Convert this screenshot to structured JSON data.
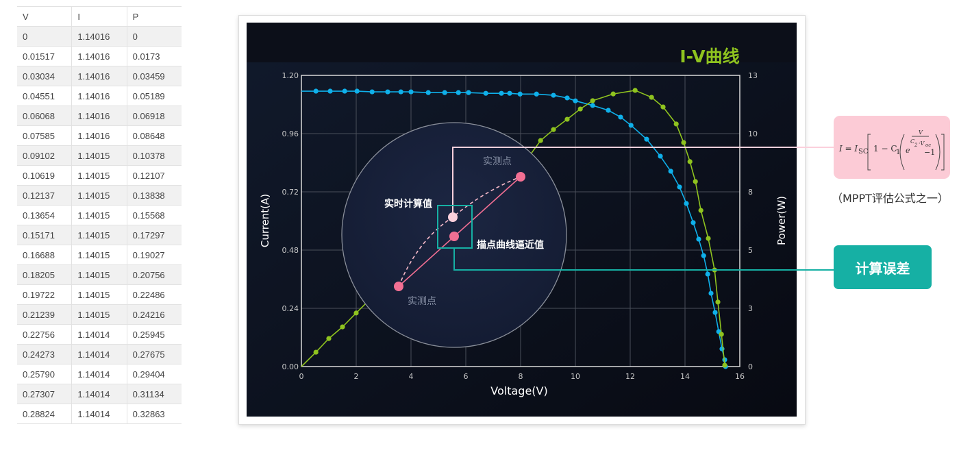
{
  "table": {
    "headers": [
      "V",
      "I",
      "P"
    ],
    "rows": [
      [
        "0",
        "1.14016",
        "0"
      ],
      [
        "0.01517",
        "1.14016",
        "0.0173"
      ],
      [
        "0.03034",
        "1.14016",
        "0.03459"
      ],
      [
        "0.04551",
        "1.14016",
        "0.05189"
      ],
      [
        "0.06068",
        "1.14016",
        "0.06918"
      ],
      [
        "0.07585",
        "1.14016",
        "0.08648"
      ],
      [
        "0.09102",
        "1.14015",
        "0.10378"
      ],
      [
        "0.10619",
        "1.14015",
        "0.12107"
      ],
      [
        "0.12137",
        "1.14015",
        "0.13838"
      ],
      [
        "0.13654",
        "1.14015",
        "0.15568"
      ],
      [
        "0.15171",
        "1.14015",
        "0.17297"
      ],
      [
        "0.16688",
        "1.14015",
        "0.19027"
      ],
      [
        "0.18205",
        "1.14015",
        "0.20756"
      ],
      [
        "0.19722",
        "1.14015",
        "0.22486"
      ],
      [
        "0.21239",
        "1.14015",
        "0.24216"
      ],
      [
        "0.22756",
        "1.14014",
        "0.25945"
      ],
      [
        "0.24273",
        "1.14014",
        "0.27675"
      ],
      [
        "0.25790",
        "1.14014",
        "0.29404"
      ],
      [
        "0.27307",
        "1.14014",
        "0.31134"
      ],
      [
        "0.28824",
        "1.14014",
        "0.32863"
      ]
    ]
  },
  "chart_data": {
    "type": "line",
    "title": "I-V曲线",
    "xlabel": "Voltage(V)",
    "ylabel": "Current(A)",
    "y2label": "Power(W)",
    "xlim": [
      0,
      16
    ],
    "ylim": [
      0,
      1.2
    ],
    "y2lim": [
      0,
      13
    ],
    "xticks": [
      "0",
      "2",
      "4",
      "6",
      "8",
      "10",
      "12",
      "14",
      "16"
    ],
    "yticks": [
      "0.00",
      "0.24",
      "0.48",
      "0.72",
      "0.96",
      "1.20"
    ],
    "y2ticks": [
      "0",
      "3",
      "5",
      "8",
      "10",
      "13"
    ],
    "grid": true,
    "colors": {
      "current": "#0fb0ea",
      "power": "#8fc31f",
      "title": "#8fc31f",
      "measured": "#f26f93",
      "calculated": "#fbd0dc",
      "highlight": "#16b0a4"
    },
    "series": [
      {
        "axis": "left",
        "color": "#0fb0ea",
        "points": [
          [
            0,
            1.135
          ],
          [
            0.53,
            1.135
          ],
          [
            1.05,
            1.135
          ],
          [
            1.58,
            1.135
          ],
          [
            2.03,
            1.135
          ],
          [
            2.58,
            1.132
          ],
          [
            3.15,
            1.132
          ],
          [
            3.63,
            1.132
          ],
          [
            4.0,
            1.132
          ],
          [
            4.63,
            1.129
          ],
          [
            5.23,
            1.129
          ],
          [
            5.73,
            1.129
          ],
          [
            6.1,
            1.129
          ],
          [
            6.73,
            1.126
          ],
          [
            7.3,
            1.126
          ],
          [
            7.6,
            1.126
          ],
          [
            7.98,
            1.123
          ],
          [
            8.58,
            1.123
          ],
          [
            9.2,
            1.118
          ],
          [
            9.7,
            1.107
          ],
          [
            10.0,
            1.095
          ],
          [
            10.63,
            1.076
          ],
          [
            11.2,
            1.056
          ],
          [
            11.65,
            1.028
          ],
          [
            12.03,
            0.994
          ],
          [
            12.6,
            0.937
          ],
          [
            13.1,
            0.867
          ],
          [
            13.48,
            0.805
          ],
          [
            13.8,
            0.74
          ],
          [
            14.05,
            0.672
          ],
          [
            14.3,
            0.593
          ],
          [
            14.5,
            0.525
          ],
          [
            14.68,
            0.457
          ],
          [
            14.83,
            0.381
          ],
          [
            14.95,
            0.302
          ],
          [
            15.1,
            0.223
          ],
          [
            15.23,
            0.144
          ],
          [
            15.35,
            0.073
          ],
          [
            15.45,
            0.028
          ],
          [
            15.48,
            0.0
          ]
        ]
      },
      {
        "axis": "right",
        "color": "#8fc31f",
        "points": [
          [
            0,
            0
          ],
          [
            0.53,
            0.64
          ],
          [
            1.0,
            1.25
          ],
          [
            1.5,
            1.77
          ],
          [
            2.0,
            2.39
          ],
          [
            2.5,
            3.0
          ],
          [
            3.5,
            3.96
          ],
          [
            4.5,
            5.08
          ],
          [
            5.5,
            6.21
          ],
          [
            6.5,
            7.32
          ],
          [
            7.5,
            8.44
          ],
          [
            8.2,
            9.2
          ],
          [
            8.73,
            10.09
          ],
          [
            9.2,
            10.58
          ],
          [
            9.7,
            11.04
          ],
          [
            10.18,
            11.5
          ],
          [
            10.63,
            11.87
          ],
          [
            11.38,
            12.17
          ],
          [
            12.18,
            12.33
          ],
          [
            12.78,
            12.02
          ],
          [
            13.2,
            11.59
          ],
          [
            13.68,
            10.83
          ],
          [
            13.95,
            10.0
          ],
          [
            14.18,
            9.15
          ],
          [
            14.38,
            8.26
          ],
          [
            14.58,
            6.97
          ],
          [
            14.85,
            5.72
          ],
          [
            15.08,
            4.31
          ],
          [
            15.2,
            2.88
          ],
          [
            15.33,
            1.44
          ],
          [
            15.45,
            0.06
          ]
        ]
      }
    ],
    "annotations": {
      "measured_point_label": "实测点",
      "realtime_label": "实时计算值",
      "fitted_label": "描点曲线逼近值"
    }
  },
  "formula": {
    "text": "I = I_SC [1 − C1 (e^(V / (C2 · Voc)) − 1)]",
    "caption": "（MPPT评估公式之一）"
  },
  "error_button": {
    "label": "计算误差"
  }
}
